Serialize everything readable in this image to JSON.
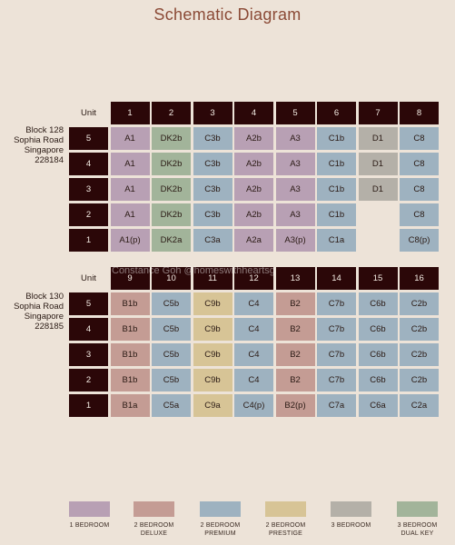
{
  "title": "Schematic Diagram",
  "watermark": "Constance Goh @homeswithheartsg",
  "colors": {
    "1B": "#b8a0b4",
    "2BD": "#c49c94",
    "2BP": "#9eb2c0",
    "2BPR": "#d7c496",
    "3B": "#b4b0a8",
    "3BDK": "#a2b49a"
  },
  "blocks": [
    {
      "name": "block-128",
      "label": [
        "Block 128",
        "Sophia Road",
        "Singapore",
        "228184"
      ],
      "unit_label": "Unit",
      "stacks": [
        "1",
        "2",
        "3",
        "4",
        "5",
        "6",
        "7",
        "8"
      ],
      "stack_types": [
        "1B",
        "3BDK",
        "2BP",
        "1B",
        "1B",
        "2BP",
        "3B",
        "2BP"
      ],
      "floors": [
        "5",
        "4",
        "3",
        "2",
        "1"
      ],
      "rows": [
        [
          "A1",
          "DK2b",
          "C3b",
          "A2b",
          "A3",
          "C1b",
          "D1",
          "C8"
        ],
        [
          "A1",
          "DK2b",
          "C3b",
          "A2b",
          "A3",
          "C1b",
          "D1",
          "C8"
        ],
        [
          "A1",
          "DK2b",
          "C3b",
          "A2b",
          "A3",
          "C1b",
          "D1",
          "C8"
        ],
        [
          "A1",
          "DK2b",
          "C3b",
          "A2b",
          "A3",
          "C1b",
          "",
          "C8"
        ],
        [
          "A1(p)",
          "DK2a",
          "C3a",
          "A2a",
          "A3(p)",
          "C1a",
          "",
          "C8(p)"
        ]
      ]
    },
    {
      "name": "block-130",
      "label": [
        "Block 130",
        "Sophia Road",
        "Singapore",
        "228185"
      ],
      "unit_label": "Unit",
      "stacks": [
        "9",
        "10",
        "11",
        "12",
        "13",
        "14",
        "15",
        "16"
      ],
      "stack_types": [
        "2BD",
        "2BP",
        "2BPR",
        "2BP",
        "2BD",
        "2BP",
        "2BP",
        "2BP"
      ],
      "floors": [
        "5",
        "4",
        "3",
        "2",
        "1"
      ],
      "rows": [
        [
          "B1b",
          "C5b",
          "C9b",
          "C4",
          "B2",
          "C7b",
          "C6b",
          "C2b"
        ],
        [
          "B1b",
          "C5b",
          "C9b",
          "C4",
          "B2",
          "C7b",
          "C6b",
          "C2b"
        ],
        [
          "B1b",
          "C5b",
          "C9b",
          "C4",
          "B2",
          "C7b",
          "C6b",
          "C2b"
        ],
        [
          "B1b",
          "C5b",
          "C9b",
          "C4",
          "B2",
          "C7b",
          "C6b",
          "C2b"
        ],
        [
          "B1a",
          "C5a",
          "C9a",
          "C4(p)",
          "B2(p)",
          "C7a",
          "C6a",
          "C2a"
        ]
      ]
    }
  ],
  "legend": [
    {
      "type": "1B",
      "line1": "1 BEDROOM",
      "line2": ""
    },
    {
      "type": "2BD",
      "line1": "2 BEDROOM",
      "line2": "DELUXE"
    },
    {
      "type": "2BP",
      "line1": "2 BEDROOM",
      "line2": "PREMIUM"
    },
    {
      "type": "2BPR",
      "line1": "2 BEDROOM",
      "line2": "PRESTIGE"
    },
    {
      "type": "3B",
      "line1": "3 BEDROOM",
      "line2": ""
    },
    {
      "type": "3BDK",
      "line1": "3 BEDROOM",
      "line2": "DUAL KEY"
    }
  ]
}
